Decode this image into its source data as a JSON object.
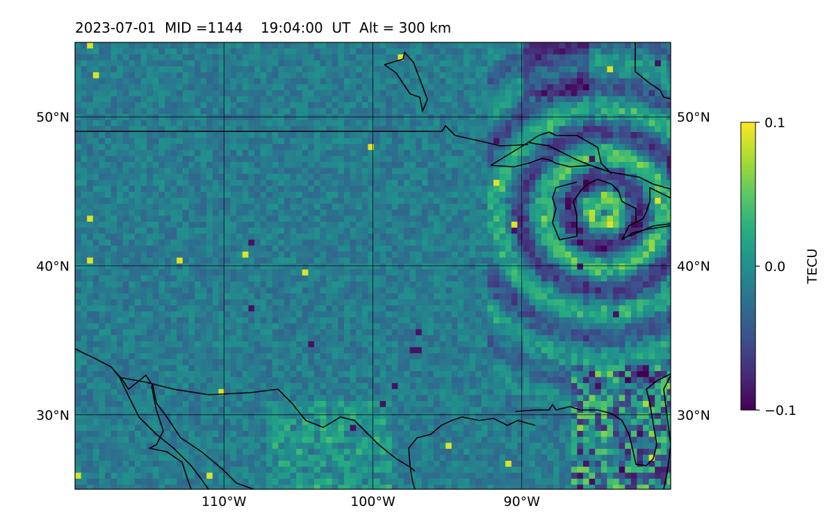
{
  "title": "2023-07-01  MID =1144    19:04:00  UT  Alt = 300 km",
  "chart_data": {
    "type": "heatmap",
    "title": "2023-07-01  MID =1144    19:04:00  UT  Alt = 300 km",
    "xlim": [
      -120,
      -80
    ],
    "ylim": [
      25,
      55
    ],
    "x_ticks": [
      {
        "value": -110,
        "label": "110°W"
      },
      {
        "value": -100,
        "label": "100°W"
      },
      {
        "value": -90,
        "label": "90°W"
      }
    ],
    "y_ticks": [
      {
        "value": 30,
        "label": "30°N"
      },
      {
        "value": 40,
        "label": "40°N"
      },
      {
        "value": 50,
        "label": "50°N"
      }
    ],
    "grid": true,
    "colorbar": {
      "label": "TECU",
      "min": -0.1,
      "max": 0.1,
      "colormap": "viridis",
      "ticks": [
        {
          "value": 0.1,
          "label": "0.1"
        },
        {
          "value": 0.0,
          "label": "0.0"
        },
        {
          "value": -0.1,
          "label": "−0.1"
        }
      ]
    },
    "features": [
      "Concentric traveling ionospheric disturbance wave rings centered near Lake Michigan / Great Lakes region",
      "Strong positive and negative anomalies along Gulf of Mexico coast near 28-30°N, 85-95°W"
    ]
  },
  "colors": {
    "viridis": [
      "#440154",
      "#472c7a",
      "#3b518b",
      "#2c718e",
      "#21908d",
      "#27ad81",
      "#5cc863",
      "#aadc32",
      "#fde725"
    ],
    "coast": "#000000",
    "grid": "#000000"
  }
}
